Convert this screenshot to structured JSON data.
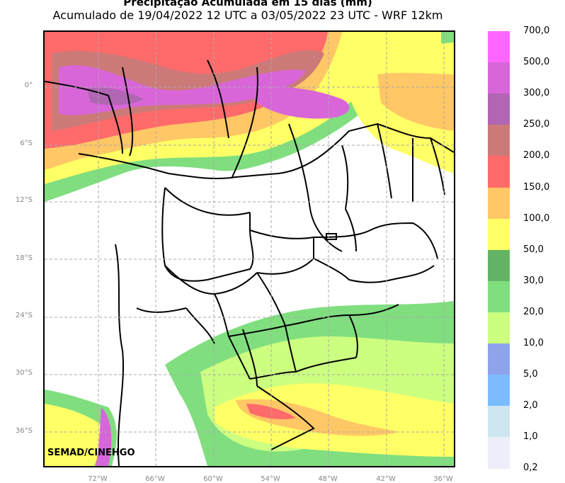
{
  "header": {
    "title": "Precipitação Acumulada em 15 dias (mm)",
    "subtitle": "Acumulado de 19/04/2022 12 UTC a 03/05/2022 23 UTC - WRF 12km"
  },
  "map": {
    "lat_labels": [
      "0°",
      "6°S",
      "12°S",
      "18°S",
      "24°S",
      "30°S",
      "36°S"
    ],
    "lon_labels": [
      "72°W",
      "66°W",
      "60°W",
      "54°W",
      "48°W",
      "42°W",
      "36°W"
    ],
    "lat_values": [
      0,
      -6,
      -12,
      -18,
      -24,
      -30,
      -36
    ],
    "lon_values": [
      -72,
      -66,
      -60,
      -54,
      -48,
      -42,
      -36
    ],
    "credit": "SEMAD/CINEHGO"
  },
  "colorbar": {
    "levels": [
      {
        "label": "700,0",
        "color": "#ff66ff"
      },
      {
        "label": "500,0",
        "color": "#d966d9"
      },
      {
        "label": "300,0",
        "color": "#b066b3"
      },
      {
        "label": "250,0",
        "color": "#cc7a78"
      },
      {
        "label": "200,0",
        "color": "#ff6a6a"
      },
      {
        "label": "150,0",
        "color": "#ffc765"
      },
      {
        "label": "100,0",
        "color": "#ffff66"
      },
      {
        "label": "50,0",
        "color": "#63b364"
      },
      {
        "label": "30,0",
        "color": "#80de7f"
      },
      {
        "label": "20,0",
        "color": "#ccff80"
      },
      {
        "label": "10,0",
        "color": "#8fa3eb"
      },
      {
        "label": "5,0",
        "color": "#7bbcff"
      },
      {
        "label": "2,0",
        "color": "#cde6f0"
      },
      {
        "label": "1,0",
        "color": "#eeeefa"
      },
      {
        "label": "0,2",
        "color": ""
      }
    ]
  }
}
